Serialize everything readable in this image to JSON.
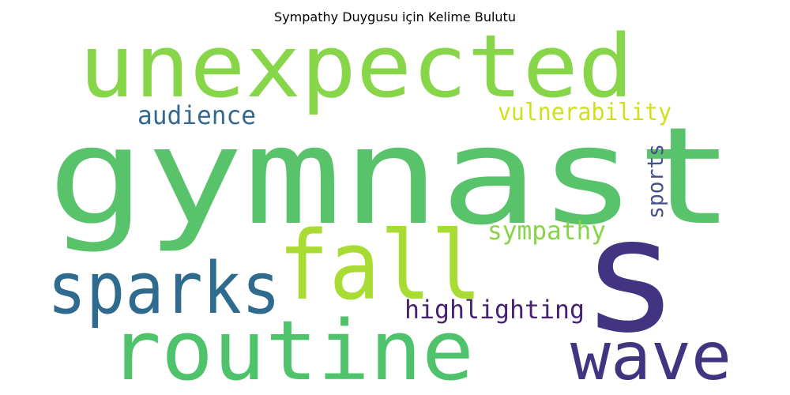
{
  "title": "Sympathy Duygusu için Kelime Bulutu",
  "words": [
    {
      "text": "gymnast",
      "color": "#58c36b"
    },
    {
      "text": "unexpected",
      "color": "#87d549"
    },
    {
      "text": "s",
      "color": "#433481"
    },
    {
      "text": "fall",
      "color": "#a8db34"
    },
    {
      "text": "routine",
      "color": "#4ec36b"
    },
    {
      "text": "sparks",
      "color": "#2f6b8e"
    },
    {
      "text": "wave",
      "color": "#433481"
    },
    {
      "text": "audience",
      "color": "#35688d"
    },
    {
      "text": "vulnerability",
      "color": "#d0e11c"
    },
    {
      "text": "sports",
      "color": "#46508a"
    },
    {
      "text": "sympathy",
      "color": "#86d549"
    },
    {
      "text": "highlighting",
      "color": "#482173"
    }
  ]
}
